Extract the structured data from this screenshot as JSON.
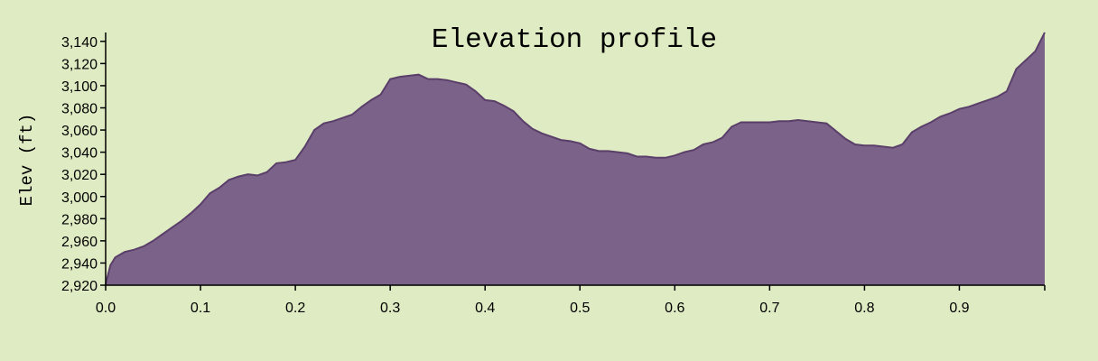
{
  "chart_data": {
    "type": "area",
    "title": "Elevation profile",
    "xlabel": "",
    "ylabel": "Elev (ft)",
    "xlim": [
      0,
      0.99
    ],
    "ylim": [
      2920,
      3148
    ],
    "x_ticks": [
      0.0,
      0.1,
      0.2,
      0.3,
      0.4,
      0.5,
      0.6,
      0.7,
      0.8,
      0.9
    ],
    "x_tick_labels": [
      "0.0",
      "0.1",
      "0.2",
      "0.3",
      "0.4",
      "0.5",
      "0.6",
      "0.7",
      "0.8",
      "0.9"
    ],
    "y_ticks": [
      2920,
      2940,
      2960,
      2980,
      3000,
      3020,
      3040,
      3060,
      3080,
      3100,
      3120,
      3140
    ],
    "y_tick_labels": [
      "2,920",
      "2,940",
      "2,960",
      "2,980",
      "3,000",
      "3,020",
      "3,040",
      "3,060",
      "3,080",
      "3,100",
      "3,120",
      "3,140"
    ],
    "grid": false,
    "colors": {
      "fill": "#7b6288",
      "stroke": "#5a3f6a",
      "background": "#dfebc2"
    },
    "x": [
      0.0,
      0.005,
      0.01,
      0.02,
      0.03,
      0.04,
      0.05,
      0.06,
      0.07,
      0.08,
      0.09,
      0.1,
      0.11,
      0.12,
      0.13,
      0.14,
      0.15,
      0.16,
      0.17,
      0.18,
      0.19,
      0.2,
      0.21,
      0.22,
      0.23,
      0.24,
      0.25,
      0.26,
      0.27,
      0.28,
      0.29,
      0.3,
      0.31,
      0.32,
      0.33,
      0.34,
      0.35,
      0.36,
      0.37,
      0.38,
      0.39,
      0.4,
      0.41,
      0.42,
      0.43,
      0.44,
      0.45,
      0.46,
      0.47,
      0.48,
      0.49,
      0.5,
      0.51,
      0.52,
      0.53,
      0.54,
      0.55,
      0.56,
      0.57,
      0.58,
      0.59,
      0.6,
      0.61,
      0.62,
      0.63,
      0.64,
      0.65,
      0.66,
      0.67,
      0.68,
      0.69,
      0.7,
      0.71,
      0.72,
      0.73,
      0.74,
      0.75,
      0.76,
      0.77,
      0.78,
      0.79,
      0.8,
      0.81,
      0.82,
      0.83,
      0.84,
      0.85,
      0.86,
      0.87,
      0.88,
      0.89,
      0.9,
      0.91,
      0.92,
      0.93,
      0.94,
      0.95,
      0.96,
      0.97,
      0.98,
      0.99
    ],
    "values": [
      2921,
      2938,
      2945,
      2950,
      2952,
      2955,
      2960,
      2966,
      2972,
      2978,
      2985,
      2993,
      3003,
      3008,
      3015,
      3018,
      3020,
      3019,
      3022,
      3030,
      3031,
      3033,
      3045,
      3060,
      3066,
      3068,
      3071,
      3074,
      3081,
      3087,
      3092,
      3106,
      3108,
      3109,
      3110,
      3106,
      3106,
      3105,
      3103,
      3101,
      3095,
      3087,
      3086,
      3082,
      3077,
      3068,
      3061,
      3057,
      3054,
      3051,
      3050,
      3048,
      3043,
      3041,
      3041,
      3040,
      3039,
      3036,
      3036,
      3035,
      3035,
      3037,
      3040,
      3042,
      3047,
      3049,
      3053,
      3063,
      3067,
      3067,
      3067,
      3067,
      3068,
      3068,
      3069,
      3068,
      3067,
      3066,
      3059,
      3052,
      3047,
      3046,
      3046,
      3045,
      3044,
      3047,
      3058,
      3063,
      3067,
      3072,
      3075,
      3079,
      3081,
      3084,
      3087,
      3090,
      3095,
      3115,
      3123,
      3131,
      3148
    ]
  }
}
